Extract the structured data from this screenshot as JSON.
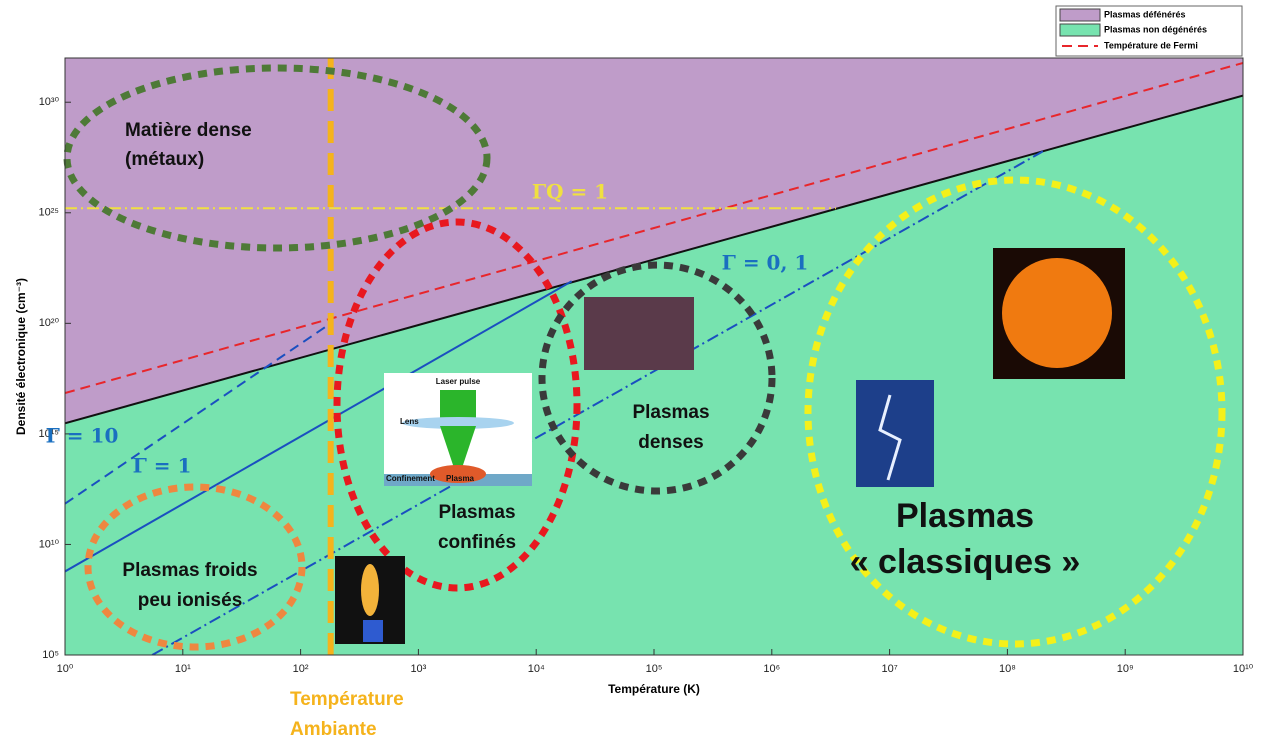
{
  "chart_data": {
    "type": "line",
    "x_label": "Température (K)",
    "y_label": "Densité électronique (cm⁻³)",
    "log_x": true,
    "log_y": true,
    "xlim": [
      1,
      10000000000
    ],
    "ylim": [
      100000,
      1e+32
    ],
    "xticks": [
      {
        "value": 1,
        "label": "10⁰"
      },
      {
        "value": 10,
        "label": "10¹"
      },
      {
        "value": 100,
        "label": "10²"
      },
      {
        "value": 1000,
        "label": "10³"
      },
      {
        "value": 10000,
        "label": "10⁴"
      },
      {
        "value": 100000,
        "label": "10⁵"
      },
      {
        "value": 1000000,
        "label": "10⁶"
      },
      {
        "value": 10000000,
        "label": "10⁷"
      },
      {
        "value": 100000000,
        "label": "10⁸"
      },
      {
        "value": 1000000000,
        "label": "10⁹"
      },
      {
        "value": 10000000000,
        "label": "10¹⁰"
      }
    ],
    "yticks": [
      {
        "value": 100000,
        "label": "10⁵"
      },
      {
        "value": 10000000000,
        "label": "10¹⁰"
      },
      {
        "value": 1000000000000000.0,
        "label": "10¹⁵"
      },
      {
        "value": 1e+20,
        "label": "10²⁰"
      },
      {
        "value": 1e+25,
        "label": "10²⁵"
      },
      {
        "value": 1e+30,
        "label": "10³⁰"
      }
    ],
    "regions": [
      {
        "name": "Plasmas défénérés",
        "color": "#bf9cc9"
      },
      {
        "name": "Plasmas non dégénérés",
        "color": "#77e3af"
      }
    ],
    "series": [
      {
        "name": "Température de Fermi",
        "color": "#e8262b",
        "style": "dashed",
        "x": [
          1,
          10000000000
        ],
        "values": [
          7e+16,
          6e+31
        ]
      },
      {
        "color": "#111111",
        "style": "solid",
        "x": [
          1,
          10000000000
        ],
        "values": [
          3000000000000000.0,
          2e+30
        ]
      },
      {
        "color": "#1a4fc0",
        "style": "dashed",
        "x": [
          1,
          180
        ],
        "values": [
          700000000000.0,
          1e+20
        ]
      },
      {
        "color": "#1a4fc0",
        "style": "solid",
        "x": [
          1,
          20000
        ],
        "values": [
          600000000.0,
          8e+21
        ]
      },
      {
        "color": "#1a4fc0",
        "style": "dashdot",
        "x": [
          5.5,
          200000000
        ],
        "values": [
          100000,
          6e+27
        ]
      },
      {
        "color": "#f0e040",
        "style": "dashdot",
        "x": [
          1,
          3500000
        ],
        "values": [
          1.6e+25,
          1.6e+25
        ]
      },
      {
        "color": "#f5b31c",
        "style": "longdash",
        "x": [
          180,
          180
        ],
        "values": [
          100000,
          1e+32
        ]
      }
    ],
    "line_labels": [
      "ΓQ = 1",
      "Γ = 10",
      "Γ = 1",
      "Γ = 0, 1"
    ],
    "vertical_label": [
      "Température",
      "Ambiante"
    ],
    "annotations": [
      [
        "Matière dense",
        "(métaux)"
      ],
      [
        "Plasmas",
        "confinés"
      ],
      [
        "Plasmas",
        "denses"
      ],
      [
        "Plasmas froids",
        "peu ionisés"
      ],
      [
        "Plasmas",
        "« classiques »"
      ]
    ],
    "laser_labels": [
      "Laser pulse",
      "Lens",
      "Confinement",
      "Plasma"
    ]
  }
}
